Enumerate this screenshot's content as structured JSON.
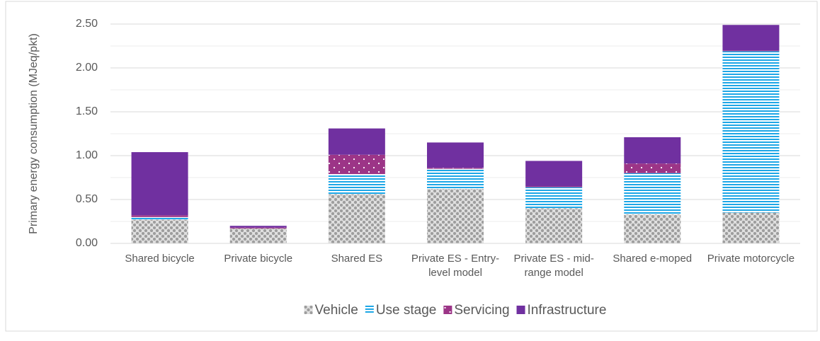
{
  "chart_data": {
    "type": "stacked_bar",
    "y_label": "Primary energy consumption (MJeq/pkt)",
    "categories": [
      "Shared bicycle",
      "Private bicycle",
      "Shared ES",
      "Private ES - Entry-level model",
      "Private ES - mid-range model",
      "Shared e-moped",
      "Private motorcycle"
    ],
    "series": [
      {
        "name": "Vehicle",
        "color": "#9e9e9e",
        "pattern": "checker",
        "values": [
          0.27,
          0.17,
          0.56,
          0.62,
          0.4,
          0.33,
          0.35
        ]
      },
      {
        "name": "Use stage",
        "color": "#1ea7e6",
        "pattern": "stripes",
        "values": [
          0.03,
          0,
          0.23,
          0.23,
          0.24,
          0.47,
          1.84
        ]
      },
      {
        "name": "Servicing",
        "color": "#9c3587",
        "pattern": "dots",
        "values": [
          0.02,
          0.01,
          0.22,
          0.01,
          0.01,
          0.11,
          0.01
        ]
      },
      {
        "name": "Infrastructure",
        "color": "#7030a0",
        "pattern": "solid",
        "values": [
          0.72,
          0.02,
          0.3,
          0.29,
          0.29,
          0.3,
          0.29
        ]
      }
    ],
    "ylim": [
      0,
      2.5
    ],
    "yticks": [
      {
        "value": 0,
        "label": "0.00"
      },
      {
        "value": 0.5,
        "label": "0.50"
      },
      {
        "value": 1,
        "label": "1.00"
      },
      {
        "value": 1.5,
        "label": "1.50"
      },
      {
        "value": 2,
        "label": "2.00"
      },
      {
        "value": 2.5,
        "label": "2.50"
      }
    ],
    "minor_yticks": [
      0.25,
      0.75,
      1.25,
      1.75,
      2.25
    ],
    "grid": true,
    "legend": "bottom"
  }
}
